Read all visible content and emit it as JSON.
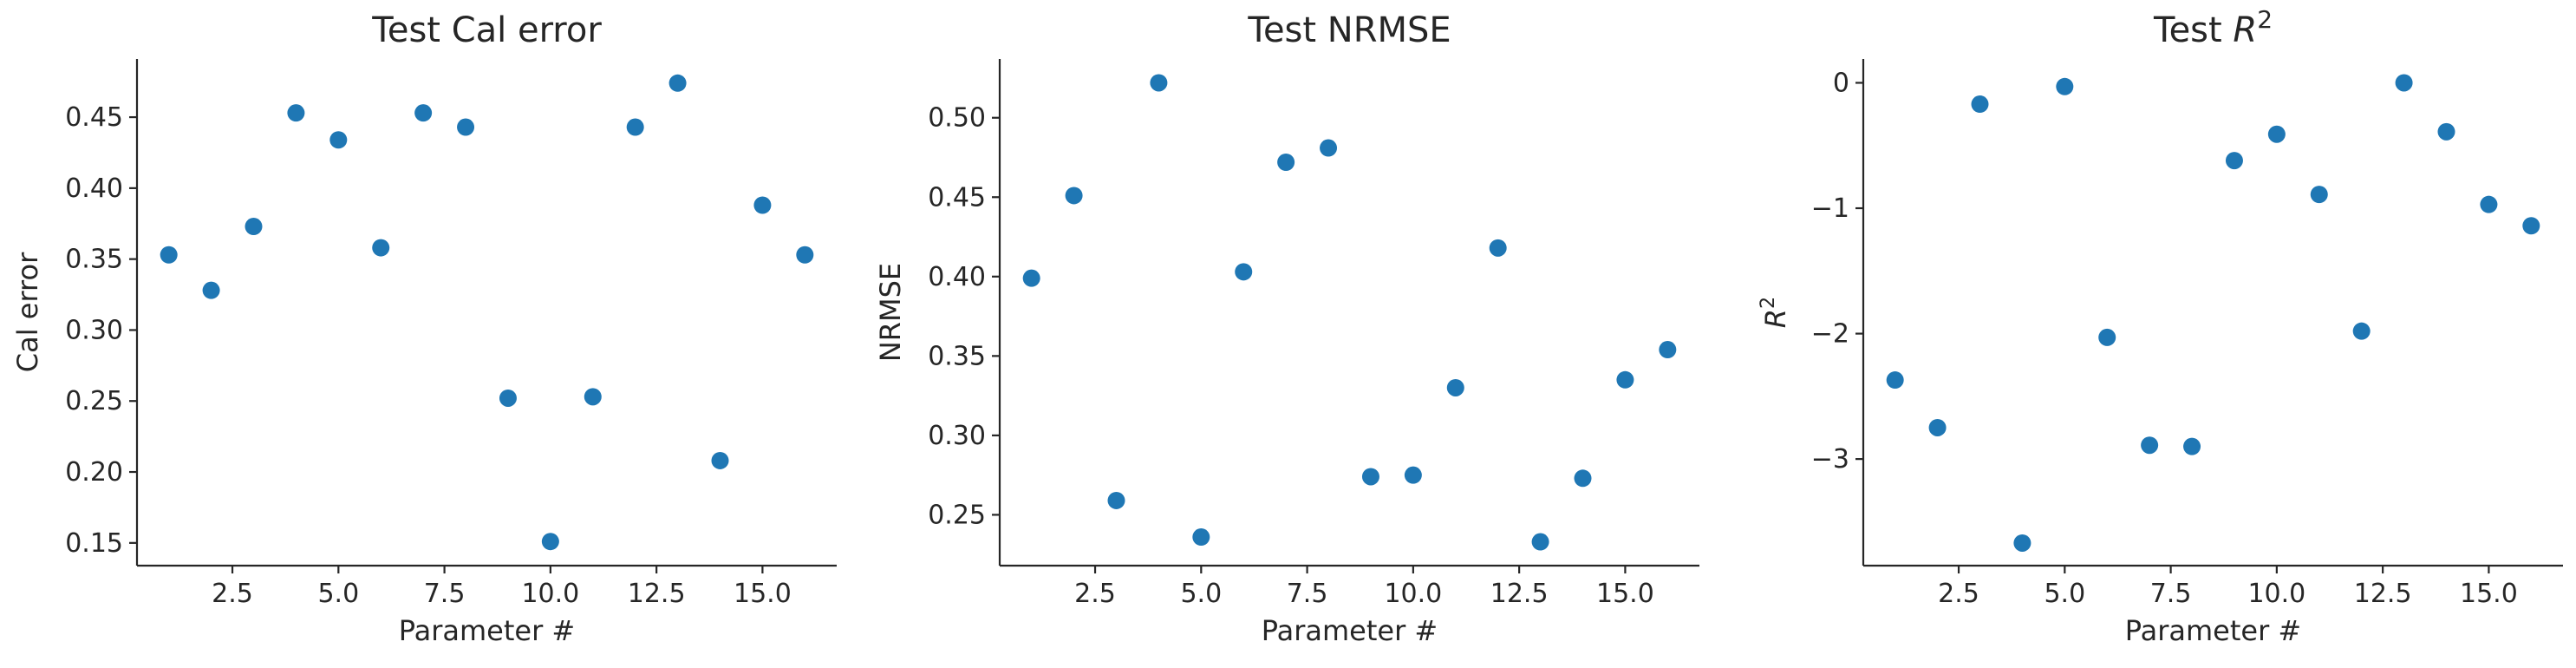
{
  "chart_data": [
    {
      "type": "scatter",
      "title": "Test Cal error",
      "title_parts": [
        {
          "text": "Test Cal error",
          "italic": false
        }
      ],
      "xlabel": "Parameter #",
      "ylabel": "Cal error",
      "ylabel_parts": [
        {
          "text": "Cal error",
          "italic": false
        }
      ],
      "xlim": [
        0.25,
        16.75
      ],
      "ylim": [
        0.134,
        0.491
      ],
      "xticks": [
        2.5,
        5.0,
        7.5,
        10.0,
        12.5,
        15.0
      ],
      "xtick_labels": [
        "2.5",
        "5.0",
        "7.5",
        "10.0",
        "12.5",
        "15.0"
      ],
      "yticks": [
        0.15,
        0.2,
        0.25,
        0.3,
        0.35,
        0.4,
        0.45
      ],
      "ytick_labels": [
        "0.15",
        "0.20",
        "0.25",
        "0.30",
        "0.35",
        "0.40",
        "0.45"
      ],
      "grid": false,
      "color": "#1f77b4",
      "points": [
        {
          "x": 1,
          "y": 0.353
        },
        {
          "x": 2,
          "y": 0.328
        },
        {
          "x": 3,
          "y": 0.373
        },
        {
          "x": 4,
          "y": 0.453
        },
        {
          "x": 5,
          "y": 0.434
        },
        {
          "x": 6,
          "y": 0.358
        },
        {
          "x": 7,
          "y": 0.453
        },
        {
          "x": 8,
          "y": 0.443
        },
        {
          "x": 9,
          "y": 0.252
        },
        {
          "x": 10,
          "y": 0.151
        },
        {
          "x": 11,
          "y": 0.253
        },
        {
          "x": 12,
          "y": 0.443
        },
        {
          "x": 13,
          "y": 0.474
        },
        {
          "x": 14,
          "y": 0.208
        },
        {
          "x": 15,
          "y": 0.388
        },
        {
          "x": 16,
          "y": 0.353
        }
      ]
    },
    {
      "type": "scatter",
      "title": "Test NRMSE",
      "title_parts": [
        {
          "text": "Test NRMSE",
          "italic": false
        }
      ],
      "xlabel": "Parameter #",
      "ylabel": "NRMSE",
      "ylabel_parts": [
        {
          "text": "NRMSE",
          "italic": false
        }
      ],
      "xlim": [
        0.25,
        16.75
      ],
      "ylim": [
        0.218,
        0.537
      ],
      "xticks": [
        2.5,
        5.0,
        7.5,
        10.0,
        12.5,
        15.0
      ],
      "xtick_labels": [
        "2.5",
        "5.0",
        "7.5",
        "10.0",
        "12.5",
        "15.0"
      ],
      "yticks": [
        0.25,
        0.3,
        0.35,
        0.4,
        0.45,
        0.5
      ],
      "ytick_labels": [
        "0.25",
        "0.30",
        "0.35",
        "0.40",
        "0.45",
        "0.50"
      ],
      "grid": false,
      "color": "#1f77b4",
      "points": [
        {
          "x": 1,
          "y": 0.399
        },
        {
          "x": 2,
          "y": 0.451
        },
        {
          "x": 3,
          "y": 0.259
        },
        {
          "x": 4,
          "y": 0.522
        },
        {
          "x": 5,
          "y": 0.236
        },
        {
          "x": 6,
          "y": 0.403
        },
        {
          "x": 7,
          "y": 0.472
        },
        {
          "x": 8,
          "y": 0.481
        },
        {
          "x": 9,
          "y": 0.274
        },
        {
          "x": 10,
          "y": 0.275
        },
        {
          "x": 11,
          "y": 0.33
        },
        {
          "x": 12,
          "y": 0.418
        },
        {
          "x": 13,
          "y": 0.233
        },
        {
          "x": 14,
          "y": 0.273
        },
        {
          "x": 15,
          "y": 0.335
        },
        {
          "x": 16,
          "y": 0.354
        }
      ]
    },
    {
      "type": "scatter",
      "title": "Test R 2",
      "title_parts": [
        {
          "text": "Test ",
          "italic": false
        },
        {
          "text": "R",
          "italic": true
        },
        {
          "text": "2",
          "sup": true
        }
      ],
      "xlabel": "Parameter #",
      "ylabel": "R 2",
      "ylabel_parts": [
        {
          "text": "R",
          "italic": true
        },
        {
          "text": "2",
          "sup": true
        }
      ],
      "xlim": [
        0.25,
        16.75
      ],
      "ylim": [
        -3.85,
        0.19
      ],
      "xticks": [
        2.5,
        5.0,
        7.5,
        10.0,
        12.5,
        15.0
      ],
      "xtick_labels": [
        "2.5",
        "5.0",
        "7.5",
        "10.0",
        "12.5",
        "15.0"
      ],
      "yticks": [
        0,
        -1,
        -2,
        -3
      ],
      "ytick_labels": [
        "0",
        "−1",
        "−2",
        "−3"
      ],
      "grid": false,
      "color": "#1f77b4",
      "points": [
        {
          "x": 1,
          "y": -2.37
        },
        {
          "x": 2,
          "y": -2.75
        },
        {
          "x": 3,
          "y": -0.17
        },
        {
          "x": 4,
          "y": -3.67
        },
        {
          "x": 5,
          "y": -0.03
        },
        {
          "x": 6,
          "y": -2.03
        },
        {
          "x": 7,
          "y": -2.89
        },
        {
          "x": 8,
          "y": -2.9
        },
        {
          "x": 9,
          "y": -0.62
        },
        {
          "x": 10,
          "y": -0.41
        },
        {
          "x": 11,
          "y": -0.89
        },
        {
          "x": 12,
          "y": -1.98
        },
        {
          "x": 13,
          "y": 0.0
        },
        {
          "x": 14,
          "y": -0.39
        },
        {
          "x": 15,
          "y": -0.97
        },
        {
          "x": 16,
          "y": -1.14
        }
      ]
    }
  ]
}
